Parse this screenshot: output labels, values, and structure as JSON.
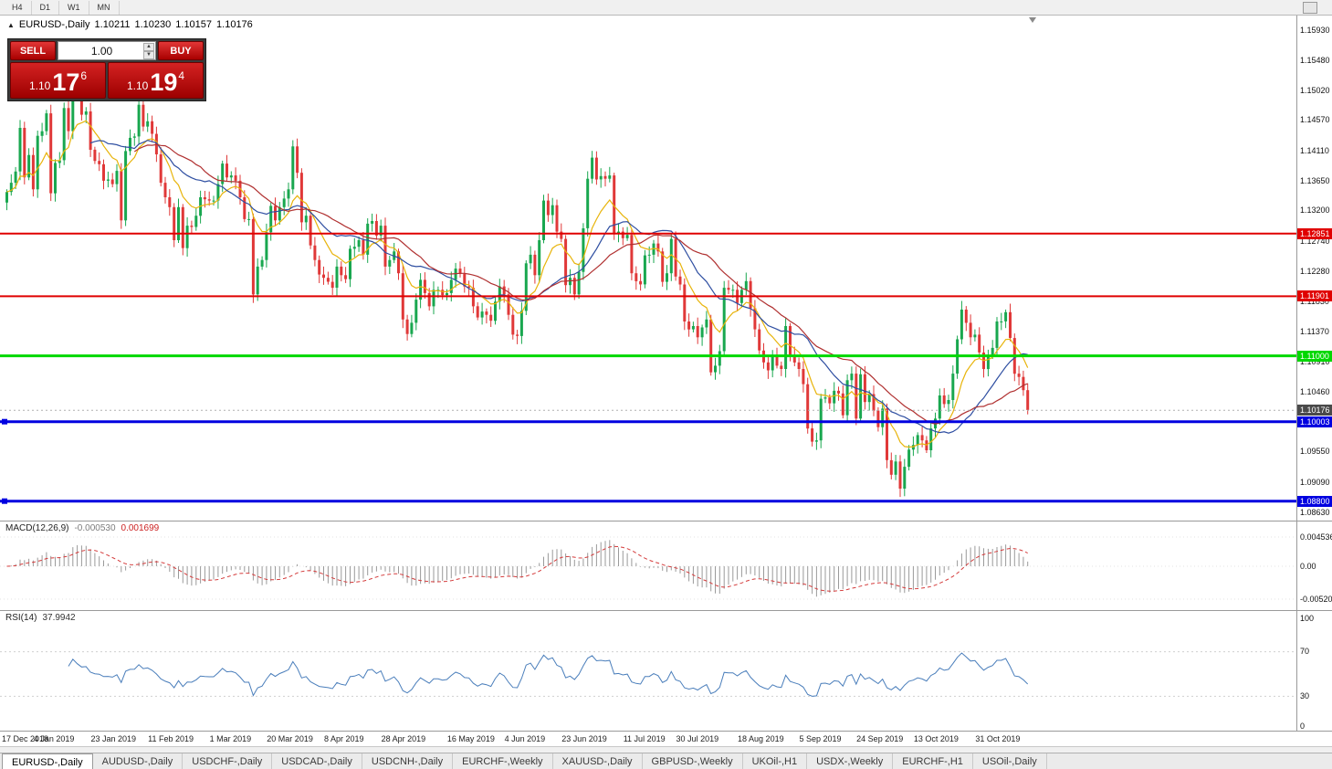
{
  "toolbar": {
    "periods": [
      "H4",
      "D1",
      "W1",
      "MN"
    ]
  },
  "icons": {
    "collapse_arrow": "▲",
    "spinner_up": "▲",
    "spinner_down": "▼"
  },
  "info": {
    "symbol": "EURUSD-,Daily",
    "open": "1.10211",
    "high": "1.10230",
    "low": "1.10157",
    "close": "1.10176"
  },
  "one_click": {
    "sell_label": "SELL",
    "buy_label": "BUY",
    "volume": "1.00",
    "bid": {
      "prefix": "1.10",
      "big": "17",
      "sup": "6"
    },
    "ask": {
      "prefix": "1.10",
      "big": "19",
      "sup": "4"
    }
  },
  "price_scale": {
    "ticks": [
      "1.15930",
      "1.15480",
      "1.15020",
      "1.14570",
      "1.14110",
      "1.13650",
      "1.13200",
      "1.12740",
      "1.12280",
      "1.11830",
      "1.11370",
      "1.10910",
      "1.10460",
      "1.09550",
      "1.09090",
      "1.08630"
    ]
  },
  "macd": {
    "title": "MACD(12,26,9)",
    "value_main": "-0.000530",
    "value_signal": "0.001699",
    "axis": [
      "0.004536",
      "0.00",
      "-0.00520"
    ]
  },
  "rsi": {
    "title": "RSI(14)",
    "value": "37.9942",
    "axis": [
      "100",
      "70",
      "30",
      "0"
    ]
  },
  "tabs": {
    "active_index": 0,
    "items": [
      "EURUSD-,Daily",
      "AUDUSD-,Daily",
      "USDCHF-,Daily",
      "USDCAD-,Daily",
      "USDCNH-,Daily",
      "EURCHF-,Weekly",
      "XAUUSD-,Daily",
      "GBPUSD-,Weekly",
      "UKOil-,H1",
      "USDX-,Weekly",
      "EURCHF-,H1",
      "USOil-,Daily"
    ],
    "note": ""
  },
  "colors": {
    "candle_up": "#19a74f",
    "candle_down": "#e03838",
    "ma_fast": "#e8b40b",
    "ma_mid": "#2e4ea1",
    "ma_slow": "#b03030",
    "macd_hist": "#9a9a9a",
    "macd_signal": "#d43a3a",
    "rsi_line": "#4a7ebb",
    "level_red": "#e00000",
    "level_green": "#00d800",
    "level_blue": "#0000e0",
    "current_price_label_bg": "#4a4a4a",
    "trade_red": "#c40000"
  },
  "chart_data": {
    "type": "candlestick",
    "symbol": "EURUSD",
    "timeframe": "Daily",
    "title": "EURUSD-,Daily",
    "displayed_ohlc": {
      "open": 1.10211,
      "high": 1.1023,
      "low": 1.10157,
      "close": 1.10176
    },
    "y_range": [
      1.0863,
      1.1593
    ],
    "first_open": 1.1332,
    "closes": [
      1.1348,
      1.1362,
      1.1379,
      1.1445,
      1.137,
      1.1404,
      1.1352,
      1.1433,
      1.144,
      1.1467,
      1.1346,
      1.1392,
      1.1396,
      1.1475,
      1.144,
      1.1545,
      1.15,
      1.1465,
      1.147,
      1.1412,
      1.1395,
      1.139,
      1.1365,
      1.1367,
      1.136,
      1.138,
      1.1305,
      1.141,
      1.143,
      1.1432,
      1.148,
      1.1447,
      1.1455,
      1.1436,
      1.1405,
      1.1362,
      1.134,
      1.1325,
      1.1275,
      1.1325,
      1.1263,
      1.1297,
      1.1295,
      1.1312,
      1.134,
      1.1337,
      1.1335,
      1.1335,
      1.136,
      1.1391,
      1.137,
      1.1373,
      1.1365,
      1.134,
      1.1307,
      1.1307,
      1.1193,
      1.1235,
      1.1245,
      1.1287,
      1.1327,
      1.1305,
      1.1325,
      1.1338,
      1.1352,
      1.1417,
      1.1377,
      1.1302,
      1.1312,
      1.1267,
      1.1245,
      1.1223,
      1.1218,
      1.1212,
      1.1203,
      1.1235,
      1.1222,
      1.1216,
      1.1262,
      1.1265,
      1.1275,
      1.1253,
      1.13,
      1.1304,
      1.1282,
      1.1297,
      1.1235,
      1.1245,
      1.1258,
      1.1225,
      1.1155,
      1.1133,
      1.115,
      1.1185,
      1.1215,
      1.1195,
      1.1175,
      1.12,
      1.12,
      1.1192,
      1.1195,
      1.1215,
      1.1232,
      1.1224,
      1.1205,
      1.1203,
      1.1175,
      1.1158,
      1.1167,
      1.1162,
      1.1153,
      1.1182,
      1.1205,
      1.1193,
      1.1162,
      1.1132,
      1.113,
      1.1168,
      1.124,
      1.1253,
      1.1222,
      1.1275,
      1.1335,
      1.1313,
      1.1328,
      1.1288,
      1.1277,
      1.1207,
      1.1218,
      1.1193,
      1.1227,
      1.1293,
      1.1368,
      1.14,
      1.1367,
      1.1372,
      1.1368,
      1.1373,
      1.1285,
      1.1288,
      1.1278,
      1.1283,
      1.1225,
      1.1213,
      1.1208,
      1.1252,
      1.1253,
      1.127,
      1.1258,
      1.1212,
      1.1225,
      1.1277,
      1.122,
      1.1208,
      1.1152,
      1.114,
      1.1145,
      1.1128,
      1.1143,
      1.1155,
      1.1075,
      1.1085,
      1.1107,
      1.1203,
      1.12,
      1.12,
      1.118,
      1.12,
      1.1213,
      1.1172,
      1.114,
      1.1108,
      1.109,
      1.1078,
      1.11,
      1.1085,
      1.108,
      1.1145,
      1.1101,
      1.109,
      1.108,
      1.1057,
      1.099,
      1.097,
      1.0972,
      1.1035,
      1.1037,
      1.1028,
      1.1047,
      1.1043,
      1.101,
      1.1063,
      1.1073,
      1.1005,
      1.1072,
      1.103,
      1.1042,
      1.1017,
      1.0992,
      1.102,
      1.0942,
      1.092,
      1.094,
      1.0899,
      1.0932,
      1.0958,
      1.0965,
      1.098,
      1.0972,
      1.0957,
      1.099,
      1.1005,
      1.104,
      1.1027,
      1.1033,
      1.1073,
      1.1125,
      1.117,
      1.115,
      1.1128,
      1.1132,
      1.1105,
      1.108,
      1.11,
      1.1112,
      1.1152,
      1.1152,
      1.1166,
      1.1127,
      1.1073,
      1.1068,
      1.1048,
      1.1018
    ],
    "levels": [
      {
        "label": "1.12851",
        "price": 1.12851,
        "color": "#e00000",
        "width": 2,
        "handles": false
      },
      {
        "label": "1.11901",
        "price": 1.11901,
        "color": "#e00000",
        "width": 2,
        "handles": false
      },
      {
        "label": "1.11000",
        "price": 1.11,
        "color": "#00d800",
        "width": 3,
        "handles": false
      },
      {
        "label": "1.10003",
        "price": 1.10003,
        "color": "#0000e0",
        "width": 3,
        "handles": true
      },
      {
        "label": "1.08800",
        "price": 1.088,
        "color": "#0000e0",
        "width": 3,
        "handles": true
      }
    ],
    "current_price": {
      "label": "1.10176",
      "price": 1.10176
    },
    "moving_averages": [
      {
        "type": "ema",
        "period": 10,
        "color": "#e8b40b"
      },
      {
        "type": "sma",
        "period": 20,
        "color": "#2e4ea1"
      },
      {
        "type": "sma",
        "period": 30,
        "color": "#b03030"
      }
    ],
    "indicators": {
      "macd_fast": 12,
      "macd_slow": 26,
      "macd_signal": 9,
      "macd_value_main": -0.00053,
      "macd_value_signal": 0.001699,
      "macd_axis_max": 0.004536,
      "macd_axis_min": -0.0052,
      "rsi_period": 14,
      "rsi_value": 37.9942,
      "rsi_levels": [
        70,
        30
      ]
    },
    "date_labels": [
      {
        "label": "17 Dec 2018",
        "i": 0
      },
      {
        "label": "4 Jan 2019",
        "i": 12
      },
      {
        "label": "23 Jan 2019",
        "i": 25
      },
      {
        "label": "11 Feb 2019",
        "i": 38
      },
      {
        "label": "1 Mar 2019",
        "i": 52
      },
      {
        "label": "20 Mar 2019",
        "i": 65
      },
      {
        "label": "8 Apr 2019",
        "i": 78
      },
      {
        "label": "28 Apr 2019",
        "i": 91
      },
      {
        "label": "16 May 2019",
        "i": 106
      },
      {
        "label": "4 Jun 2019",
        "i": 119
      },
      {
        "label": "23 Jun 2019",
        "i": 132
      },
      {
        "label": "11 Jul 2019",
        "i": 146
      },
      {
        "label": "30 Jul 2019",
        "i": 158
      },
      {
        "label": "18 Aug 2019",
        "i": 172
      },
      {
        "label": "5 Sep 2019",
        "i": 186
      },
      {
        "label": "24 Sep 2019",
        "i": 199
      },
      {
        "label": "13 Oct 2019",
        "i": 212
      },
      {
        "label": "31 Oct 2019",
        "i": 226
      }
    ]
  }
}
